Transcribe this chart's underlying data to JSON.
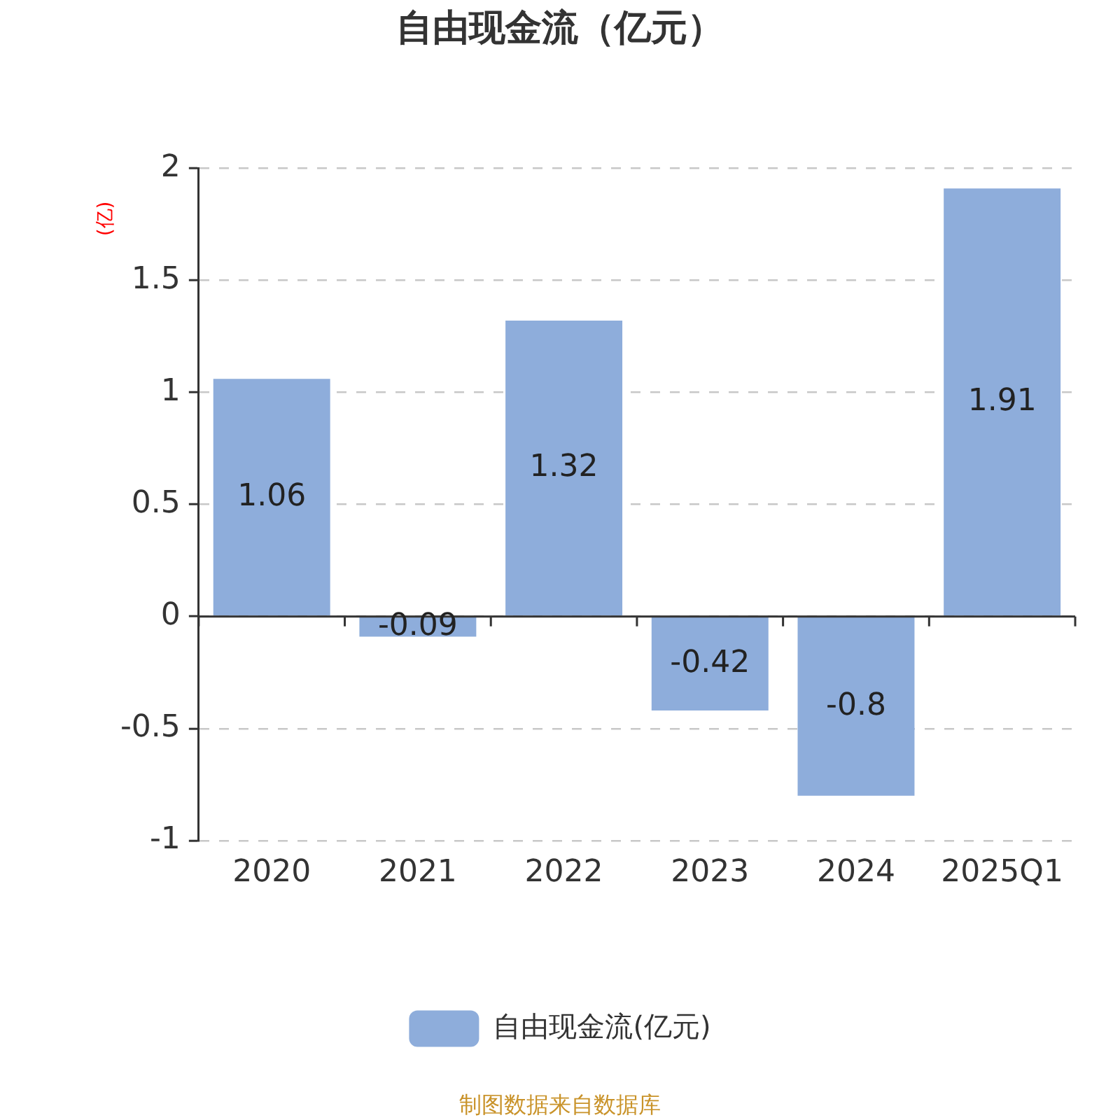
{
  "chart_data": {
    "type": "bar",
    "title": "自由现金流（亿元）",
    "ylabel": "(亿)",
    "categories": [
      "2020",
      "2021",
      "2022",
      "2023",
      "2024",
      "2025Q1"
    ],
    "series": [
      {
        "name": "自由现金流(亿元)",
        "color": "#8eaddb",
        "values": [
          1.06,
          -0.09,
          1.32,
          -0.42,
          -0.8,
          1.91
        ]
      }
    ],
    "ylim": [
      -1,
      2
    ],
    "yticks": [
      -1,
      -0.5,
      0,
      0.5,
      1,
      1.5,
      2
    ],
    "grid": "y",
    "legend": "bottom",
    "data_labels": true,
    "annotations": [
      "制图数据来自数据库"
    ]
  }
}
